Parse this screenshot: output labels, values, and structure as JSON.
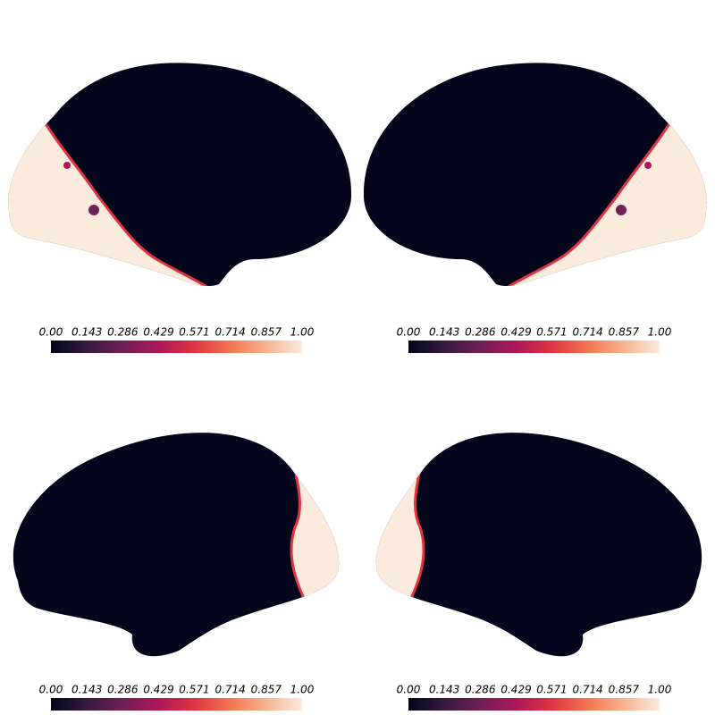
{
  "colormap": [
    "#03051a",
    "#36193e",
    "#701f57",
    "#ae1759",
    "#e13342",
    "#f37651",
    "#f6b48f",
    "#faebdd"
  ],
  "colorbars": [
    {
      "ticks": [
        {
          "value": 0,
          "label": "0.00"
        },
        {
          "value": 0.143,
          "label": "0.143"
        },
        {
          "value": 0.286,
          "label": "0.286"
        },
        {
          "value": 0.429,
          "label": "0.429"
        },
        {
          "value": 0.571,
          "label": "0.571"
        },
        {
          "value": 0.714,
          "label": "0.714"
        },
        {
          "value": 0.857,
          "label": "0.857"
        },
        {
          "value": 1,
          "label": "1.00"
        }
      ]
    },
    {
      "ticks": [
        {
          "value": 0,
          "label": "0.00"
        },
        {
          "value": 0.143,
          "label": "0.143"
        },
        {
          "value": 0.286,
          "label": "0.286"
        },
        {
          "value": 0.429,
          "label": "0.429"
        },
        {
          "value": 0.571,
          "label": "0.571"
        },
        {
          "value": 0.714,
          "label": "0.714"
        },
        {
          "value": 0.857,
          "label": "0.857"
        },
        {
          "value": 1,
          "label": "1.00"
        }
      ]
    },
    {
      "ticks": [
        {
          "value": 0,
          "label": "0.00"
        },
        {
          "value": 0.143,
          "label": "0.143"
        },
        {
          "value": 0.286,
          "label": "0.286"
        },
        {
          "value": 0.429,
          "label": "0.429"
        },
        {
          "value": 0.571,
          "label": "0.571"
        },
        {
          "value": 0.714,
          "label": "0.714"
        },
        {
          "value": 0.857,
          "label": "0.857"
        },
        {
          "value": 1,
          "label": "1.00"
        }
      ]
    },
    {
      "ticks": [
        {
          "value": 0,
          "label": "0.00"
        },
        {
          "value": 0.143,
          "label": "0.143"
        },
        {
          "value": 0.286,
          "label": "0.286"
        },
        {
          "value": 0.429,
          "label": "0.429"
        },
        {
          "value": 0.571,
          "label": "0.571"
        },
        {
          "value": 0.714,
          "label": "0.714"
        },
        {
          "value": 0.857,
          "label": "0.857"
        },
        {
          "value": 1,
          "label": "1.00"
        }
      ]
    }
  ]
}
